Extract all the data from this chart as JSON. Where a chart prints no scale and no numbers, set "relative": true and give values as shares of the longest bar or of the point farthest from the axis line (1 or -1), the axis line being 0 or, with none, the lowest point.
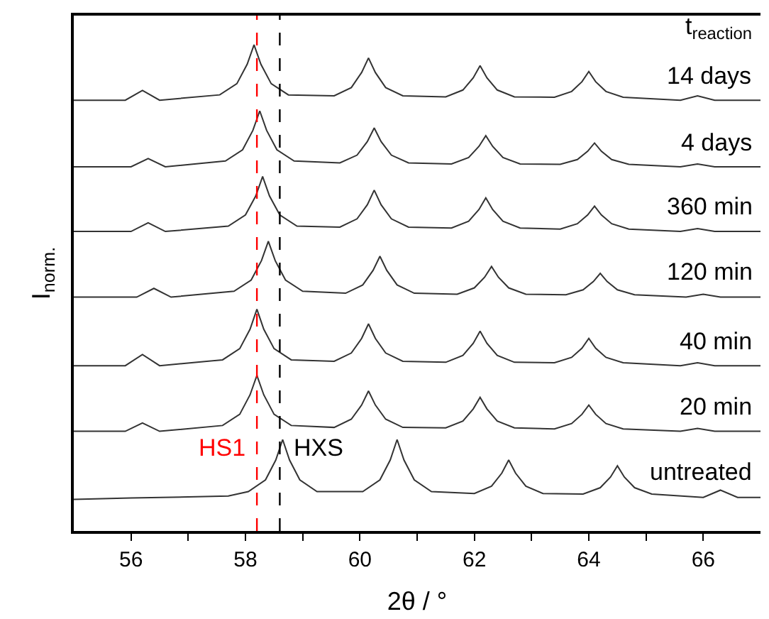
{
  "chart_data": {
    "type": "line",
    "relative": true,
    "xlabel": "2θ / °",
    "ylabel": "I$_{norm.}$",
    "legend_title": "t$_{reaction}$",
    "xlim": [
      55,
      67
    ],
    "xticks": [
      56,
      {
        "value": 57,
        "label": null
      },
      58,
      {
        "value": 59,
        "label": null
      },
      60,
      {
        "value": 61,
        "label": null
      },
      62,
      {
        "value": 63,
        "label": null
      },
      64,
      {
        "value": 65,
        "label": null
      },
      66
    ],
    "tick_labels": "x",
    "legend": false,
    "marker": "none",
    "line_style": "solid",
    "ref_lines": [
      {
        "axis": "x",
        "value": 58.2,
        "label": "HS1",
        "color": "#ff0000",
        "line_style": "dashed"
      },
      {
        "axis": "x",
        "value": 58.6,
        "label": "HXS",
        "color": "#000000",
        "line_style": "dashed"
      }
    ],
    "series": [
      {
        "name": "untreated",
        "color": "#333333",
        "x": [
          55,
          56,
          57,
          57.7,
          58.05,
          58.35,
          58.53,
          58.65,
          58.77,
          58.95,
          59.25,
          60.05,
          60.35,
          60.53,
          60.65,
          60.77,
          60.95,
          61.25,
          62.0,
          62.3,
          62.48,
          62.6,
          62.72,
          62.9,
          63.2,
          63.9,
          64.2,
          64.38,
          64.5,
          64.62,
          64.8,
          65.1,
          66.0,
          66.3,
          66.6,
          67
        ],
        "values": [
          0.065,
          0.068,
          0.07,
          0.072,
          0.081,
          0.105,
          0.146,
          0.188,
          0.146,
          0.105,
          0.081,
          0.081,
          0.105,
          0.146,
          0.188,
          0.146,
          0.105,
          0.081,
          0.077,
          0.092,
          0.119,
          0.146,
          0.119,
          0.092,
          0.077,
          0.076,
          0.089,
          0.111,
          0.134,
          0.111,
          0.089,
          0.076,
          0.069,
          0.084,
          0.069,
          0.069
        ]
      },
      {
        "name": "20 min",
        "color": "#333333",
        "x": [
          55,
          55.9,
          56.2,
          56.5,
          57.6,
          57.9,
          58.08,
          58.2,
          58.32,
          58.5,
          58.8,
          59.55,
          59.85,
          60.03,
          60.15,
          60.27,
          60.45,
          60.75,
          61.5,
          61.8,
          61.98,
          62.1,
          62.22,
          62.4,
          62.7,
          63.4,
          63.7,
          63.88,
          64.0,
          64.12,
          64.3,
          64.6,
          65.6,
          65.9,
          66.2,
          67
        ],
        "values": [
          0.205,
          0.205,
          0.222,
          0.205,
          0.217,
          0.24,
          0.28,
          0.32,
          0.28,
          0.24,
          0.217,
          0.213,
          0.23,
          0.259,
          0.288,
          0.259,
          0.23,
          0.213,
          0.212,
          0.226,
          0.251,
          0.275,
          0.251,
          0.226,
          0.212,
          0.21,
          0.221,
          0.24,
          0.259,
          0.24,
          0.221,
          0.21,
          0.205,
          0.211,
          0.205,
          0.205
        ]
      },
      {
        "name": "40 min",
        "color": "#333333",
        "x": [
          55,
          55.9,
          56.2,
          56.5,
          57.6,
          57.9,
          58.08,
          58.2,
          58.32,
          58.5,
          58.8,
          59.55,
          59.85,
          60.03,
          60.15,
          60.27,
          60.45,
          60.75,
          61.5,
          61.8,
          61.98,
          62.1,
          62.22,
          62.4,
          62.7,
          63.4,
          63.7,
          63.88,
          64.0,
          64.12,
          64.3,
          64.6,
          65.6,
          65.9,
          66.2,
          67
        ],
        "values": [
          0.34,
          0.34,
          0.363,
          0.34,
          0.352,
          0.375,
          0.415,
          0.456,
          0.415,
          0.375,
          0.352,
          0.349,
          0.366,
          0.396,
          0.426,
          0.396,
          0.366,
          0.349,
          0.347,
          0.361,
          0.386,
          0.411,
          0.386,
          0.361,
          0.347,
          0.346,
          0.357,
          0.376,
          0.396,
          0.376,
          0.357,
          0.346,
          0.34,
          0.346,
          0.34,
          0.34
        ]
      },
      {
        "name": "120 min",
        "color": "#333333",
        "x": [
          55,
          56.1,
          56.4,
          56.7,
          57.8,
          58.1,
          58.28,
          58.4,
          58.52,
          58.7,
          59.0,
          59.75,
          60.05,
          60.23,
          60.35,
          60.47,
          60.65,
          60.95,
          61.7,
          62.0,
          62.18,
          62.3,
          62.42,
          62.6,
          62.9,
          63.6,
          63.9,
          64.08,
          64.2,
          64.32,
          64.5,
          64.8,
          65.7,
          66.0,
          66.3,
          67
        ],
        "values": [
          0.481,
          0.481,
          0.499,
          0.481,
          0.493,
          0.516,
          0.556,
          0.596,
          0.556,
          0.516,
          0.493,
          0.489,
          0.506,
          0.536,
          0.565,
          0.536,
          0.506,
          0.489,
          0.487,
          0.5,
          0.522,
          0.544,
          0.522,
          0.5,
          0.487,
          0.486,
          0.496,
          0.513,
          0.53,
          0.513,
          0.496,
          0.486,
          0.481,
          0.487,
          0.481,
          0.481
        ]
      },
      {
        "name": "360 min",
        "color": "#333333",
        "x": [
          55,
          56.0,
          56.3,
          56.6,
          57.7,
          58.0,
          58.18,
          58.3,
          58.42,
          58.6,
          58.9,
          59.65,
          59.95,
          60.13,
          60.25,
          60.37,
          60.55,
          60.85,
          61.6,
          61.9,
          62.08,
          62.2,
          62.32,
          62.5,
          62.8,
          63.5,
          63.8,
          63.98,
          64.1,
          64.22,
          64.4,
          64.7,
          65.6,
          65.9,
          66.2,
          67
        ],
        "values": [
          0.616,
          0.616,
          0.634,
          0.616,
          0.627,
          0.65,
          0.689,
          0.729,
          0.689,
          0.65,
          0.627,
          0.625,
          0.642,
          0.671,
          0.701,
          0.671,
          0.642,
          0.625,
          0.623,
          0.637,
          0.661,
          0.685,
          0.661,
          0.637,
          0.623,
          0.621,
          0.632,
          0.65,
          0.668,
          0.65,
          0.632,
          0.621,
          0.616,
          0.622,
          0.616,
          0.616
        ]
      },
      {
        "name": "4 days",
        "color": "#333333",
        "x": [
          55,
          56.0,
          56.3,
          56.6,
          57.65,
          57.95,
          58.13,
          58.25,
          58.37,
          58.55,
          58.85,
          59.65,
          59.95,
          60.13,
          60.25,
          60.37,
          60.55,
          60.85,
          61.6,
          61.9,
          62.08,
          62.2,
          62.32,
          62.5,
          62.8,
          63.5,
          63.8,
          63.98,
          64.1,
          64.22,
          64.4,
          64.7,
          65.6,
          65.9,
          66.2,
          67
        ],
        "values": [
          0.749,
          0.749,
          0.766,
          0.749,
          0.761,
          0.784,
          0.824,
          0.864,
          0.824,
          0.784,
          0.761,
          0.757,
          0.773,
          0.801,
          0.829,
          0.801,
          0.773,
          0.757,
          0.755,
          0.768,
          0.791,
          0.813,
          0.791,
          0.768,
          0.755,
          0.754,
          0.764,
          0.781,
          0.798,
          0.781,
          0.764,
          0.754,
          0.749,
          0.755,
          0.749,
          0.749
        ]
      },
      {
        "name": "14 days",
        "color": "#333333",
        "x": [
          55,
          55.9,
          56.2,
          56.5,
          57.55,
          57.85,
          58.03,
          58.15,
          58.27,
          58.45,
          58.75,
          59.55,
          59.85,
          60.03,
          60.15,
          60.27,
          60.45,
          60.75,
          61.5,
          61.8,
          61.98,
          62.1,
          62.22,
          62.4,
          62.7,
          63.4,
          63.7,
          63.88,
          64.0,
          64.12,
          64.3,
          64.6,
          65.6,
          65.9,
          66.2,
          67
        ],
        "values": [
          0.886,
          0.886,
          0.906,
          0.886,
          0.897,
          0.92,
          0.96,
          1.0,
          0.96,
          0.92,
          0.897,
          0.895,
          0.912,
          0.943,
          0.973,
          0.943,
          0.912,
          0.895,
          0.893,
          0.907,
          0.932,
          0.957,
          0.932,
          0.907,
          0.893,
          0.892,
          0.904,
          0.924,
          0.945,
          0.924,
          0.904,
          0.892,
          0.886,
          0.895,
          0.886,
          0.886
        ]
      }
    ]
  }
}
